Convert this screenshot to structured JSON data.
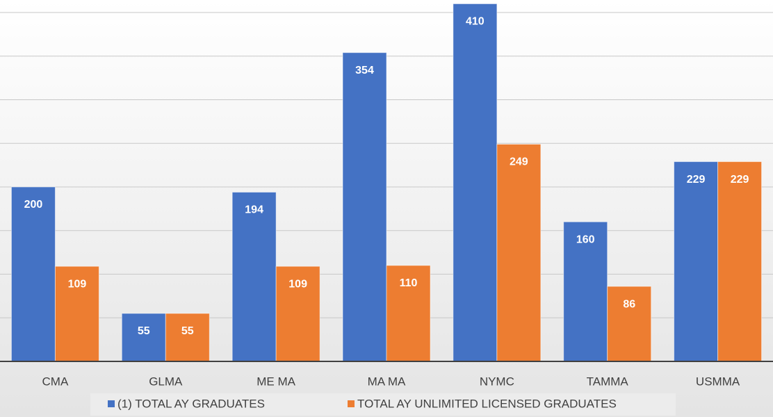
{
  "chart_data": {
    "type": "bar",
    "categories": [
      "CMA",
      "GLMA",
      "ME MA",
      "MA MA",
      "NYMC",
      "TAMMA",
      "USMMA"
    ],
    "series": [
      {
        "name": "(1) TOTAL AY GRADUATES",
        "color": "#4472c4",
        "values": [
          200,
          55,
          194,
          354,
          410,
          160,
          229
        ]
      },
      {
        "name": "TOTAL AY UNLIMITED LICENSED GRADUATES",
        "color": "#ed7d31",
        "values": [
          109,
          55,
          109,
          110,
          249,
          86,
          229
        ]
      }
    ],
    "ylim": [
      0,
      415
    ],
    "yticks": [
      0,
      50,
      100,
      150,
      200,
      250,
      300,
      350,
      400
    ],
    "grid": true,
    "legend": "bottom"
  }
}
